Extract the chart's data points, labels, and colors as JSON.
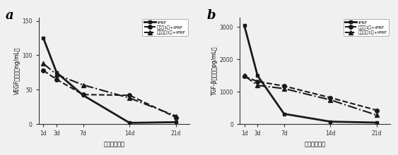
{
  "x_labels": [
    "1d",
    "3d",
    "7d",
    "14d",
    "21d"
  ],
  "x_vals": [
    1,
    3,
    7,
    14,
    21
  ],
  "a_title": "a",
  "a_ylabel": "VEGF释放量（ng/mL）",
  "a_xlabel": "时间（天数）",
  "a_ylim": [
    0,
    155
  ],
  "a_yticks": [
    0,
    50,
    100,
    150
  ],
  "a_line1": [
    125,
    75,
    42,
    2,
    3
  ],
  "a_line2": [
    78,
    65,
    43,
    42,
    10
  ],
  "a_line3": [
    88,
    72,
    57,
    38,
    12
  ],
  "b_title": "b",
  "b_ylabel": "TGF-β释放量（pg/mL）",
  "b_xlabel": "时间（天数）",
  "b_ylim": [
    0,
    3300
  ],
  "b_yticks": [
    0,
    1000,
    2000,
    3000
  ],
  "b_line1": [
    3050,
    1500,
    320,
    80,
    50
  ],
  "b_line2": [
    1480,
    1320,
    1180,
    820,
    430
  ],
  "b_line3": [
    1500,
    1200,
    1100,
    750,
    280
  ],
  "legend_labels": [
    "iPRF",
    "明胶頇1粒+iPRF",
    "氧化硅頇1粒+iPRF"
  ],
  "color": "#1a1a1a",
  "bg_color": "#f0f0f0"
}
